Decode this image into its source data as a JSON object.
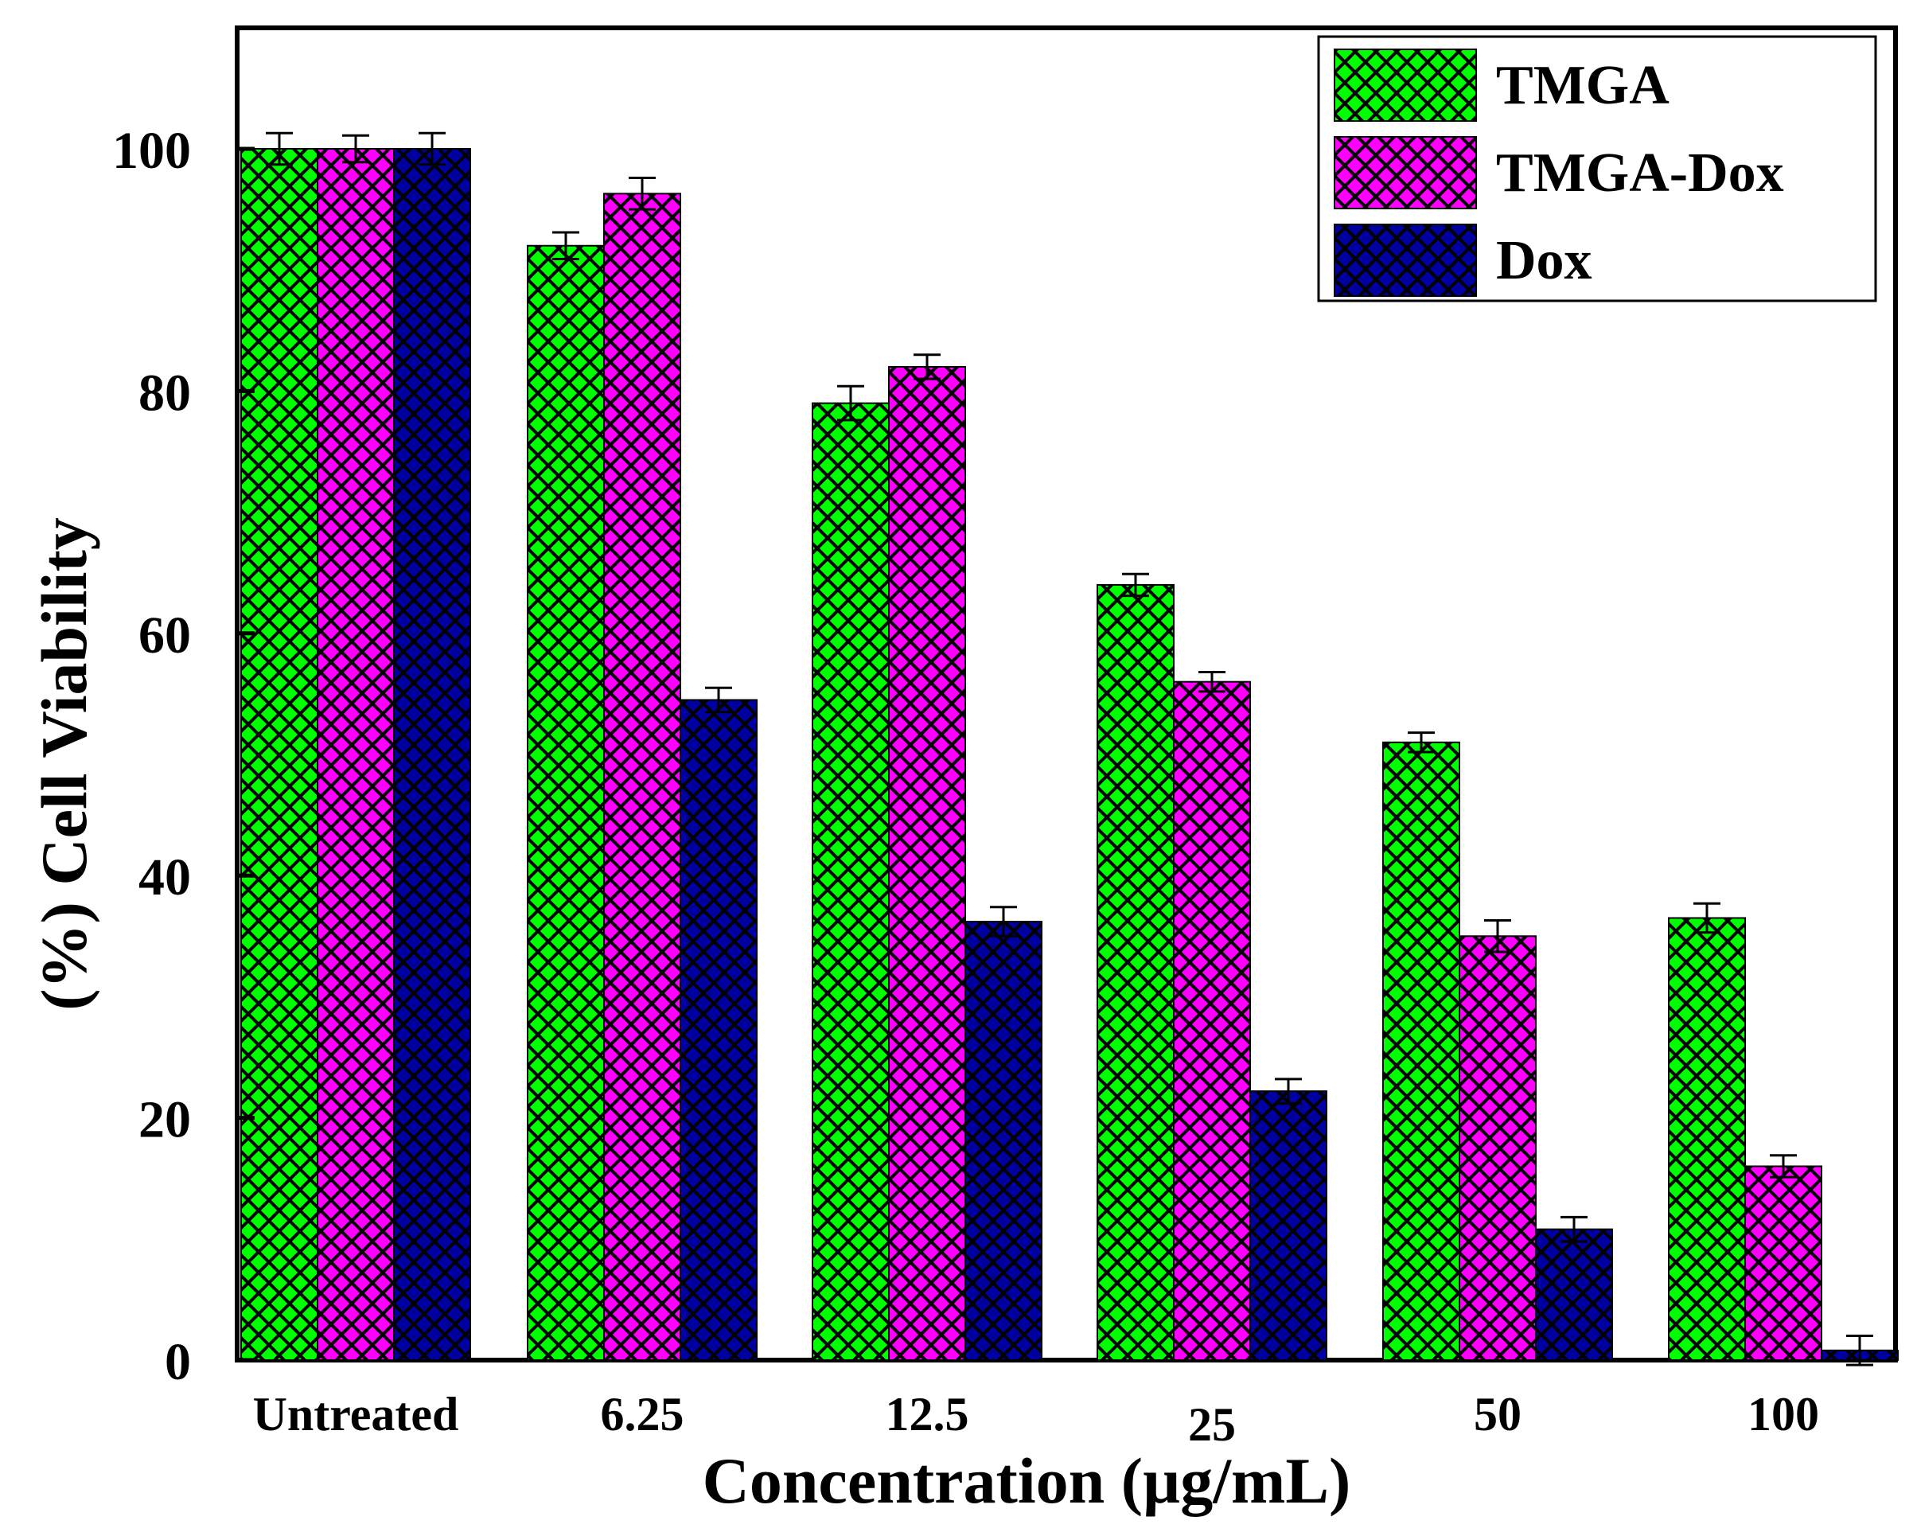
{
  "chart_data": {
    "type": "bar",
    "title": "",
    "xlabel": "Concentration (µg/mL)",
    "ylabel": "(%) Cell Viability",
    "ylim": [
      0,
      110
    ],
    "yticks": [
      0,
      20,
      40,
      60,
      80,
      100
    ],
    "ytick_labels": [
      "0",
      "20",
      "40",
      "60",
      "80",
      "100"
    ],
    "categories": [
      "Untreated",
      "6.25",
      "12.5",
      "25",
      "50",
      "100"
    ],
    "series": [
      {
        "name": "TMGA",
        "color": "#00ff00",
        "values": [
          100,
          92,
          79,
          64,
          51,
          36.5
        ],
        "errors": [
          1.3,
          1.1,
          1.4,
          0.9,
          0.8,
          1.2
        ]
      },
      {
        "name": "TMGA-Dox",
        "color": "#ff00ff",
        "values": [
          100,
          96.3,
          82,
          56,
          35,
          16
        ],
        "errors": [
          1.1,
          1.3,
          1.0,
          0.8,
          1.3,
          0.9
        ]
      },
      {
        "name": "Dox",
        "color": "#0000a0",
        "values": [
          100,
          54.5,
          36.2,
          22.2,
          10.8,
          0.8
        ],
        "errors": [
          1.3,
          1.0,
          1.2,
          1.0,
          1.0,
          1.2
        ]
      }
    ],
    "pattern": "crosshatch",
    "hatch_color": "#000000",
    "legend_position": "top-right"
  }
}
